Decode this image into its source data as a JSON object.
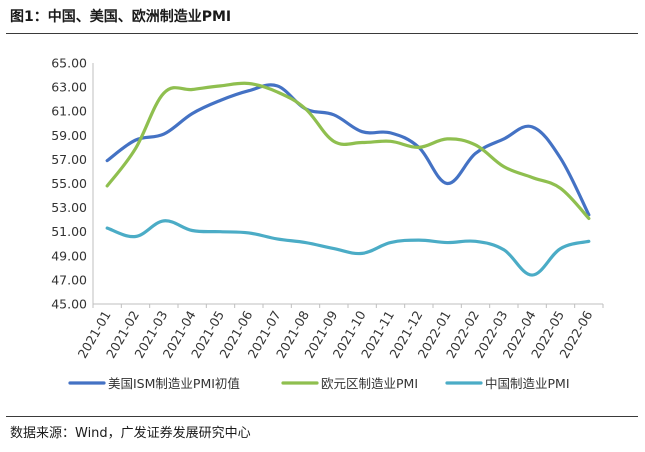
{
  "title": "图1：中国、美国、欧洲制造业PMI",
  "source": "数据来源：Wind，广发证券发展研究中心",
  "chart_data": {
    "type": "line",
    "title": "图1：中国、美国、欧洲制造业PMI",
    "xlabel": "",
    "ylabel": "",
    "ylim": [
      45,
      65
    ],
    "yticks": [
      "45.00",
      "47.00",
      "49.00",
      "51.00",
      "53.00",
      "55.00",
      "57.00",
      "59.00",
      "61.00",
      "63.00",
      "65.00"
    ],
    "categories": [
      "2021-01",
      "2021-02",
      "2021-03",
      "2021-04",
      "2021-05",
      "2021-06",
      "2021-07",
      "2021-08",
      "2021-09",
      "2021-10",
      "2021-11",
      "2021-12",
      "2022-01",
      "2022-02",
      "2022-03",
      "2022-04",
      "2022-05",
      "2022-06"
    ],
    "grid": false,
    "legend_position": "bottom",
    "series": [
      {
        "name": "美国ISM制造业PMI初值",
        "color": "#4472C4",
        "values": [
          56.9,
          58.6,
          59.1,
          60.8,
          61.9,
          62.7,
          63.1,
          61.2,
          60.7,
          59.3,
          59.2,
          58.0,
          55.0,
          57.5,
          58.7,
          59.7,
          57.1,
          52.4
        ]
      },
      {
        "name": "欧元区制造业PMI",
        "color": "#8FBF4F",
        "values": [
          54.8,
          57.9,
          62.5,
          62.8,
          63.1,
          63.3,
          62.6,
          61.2,
          58.5,
          58.4,
          58.5,
          58.0,
          58.7,
          58.2,
          56.4,
          55.5,
          54.6,
          52.1
        ]
      },
      {
        "name": "中国制造业PMI",
        "color": "#4BACC6",
        "values": [
          51.3,
          50.6,
          51.9,
          51.1,
          51.0,
          50.9,
          50.4,
          50.1,
          49.6,
          49.2,
          50.1,
          50.3,
          50.1,
          50.2,
          49.5,
          47.4,
          49.6,
          50.2
        ]
      }
    ]
  }
}
